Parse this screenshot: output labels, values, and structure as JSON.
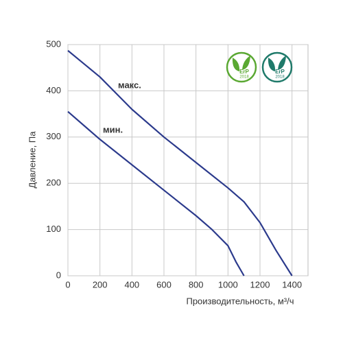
{
  "chart_data": {
    "type": "line",
    "x_label": "Производительность, м³/ч",
    "y_label": "Давление, Па",
    "series": [
      {
        "name": "макс.",
        "color": "#2b3a8c",
        "x": [
          0,
          200,
          400,
          600,
          800,
          1000,
          1100,
          1200,
          1300,
          1400
        ],
        "values": [
          487,
          430,
          360,
          300,
          245,
          190,
          160,
          115,
          55,
          0
        ]
      },
      {
        "name": "мин.",
        "color": "#2b3a8c",
        "x": [
          0,
          200,
          400,
          600,
          800,
          900,
          1000,
          1050,
          1100
        ],
        "values": [
          355,
          295,
          240,
          185,
          130,
          100,
          65,
          30,
          0
        ]
      }
    ],
    "xlim": [
      0,
      1500
    ],
    "xticks": [
      0,
      200,
      400,
      600,
      800,
      1000,
      1200,
      1400
    ],
    "ylim": [
      0,
      500
    ],
    "yticks": [
      0,
      100,
      200,
      300,
      400,
      500
    ],
    "grid": true,
    "badges": [
      {
        "label": "ErP",
        "year": "2018",
        "color": "#5aa832"
      },
      {
        "label": "ErP",
        "year": "2018",
        "color": "#1f7a6a"
      }
    ]
  }
}
